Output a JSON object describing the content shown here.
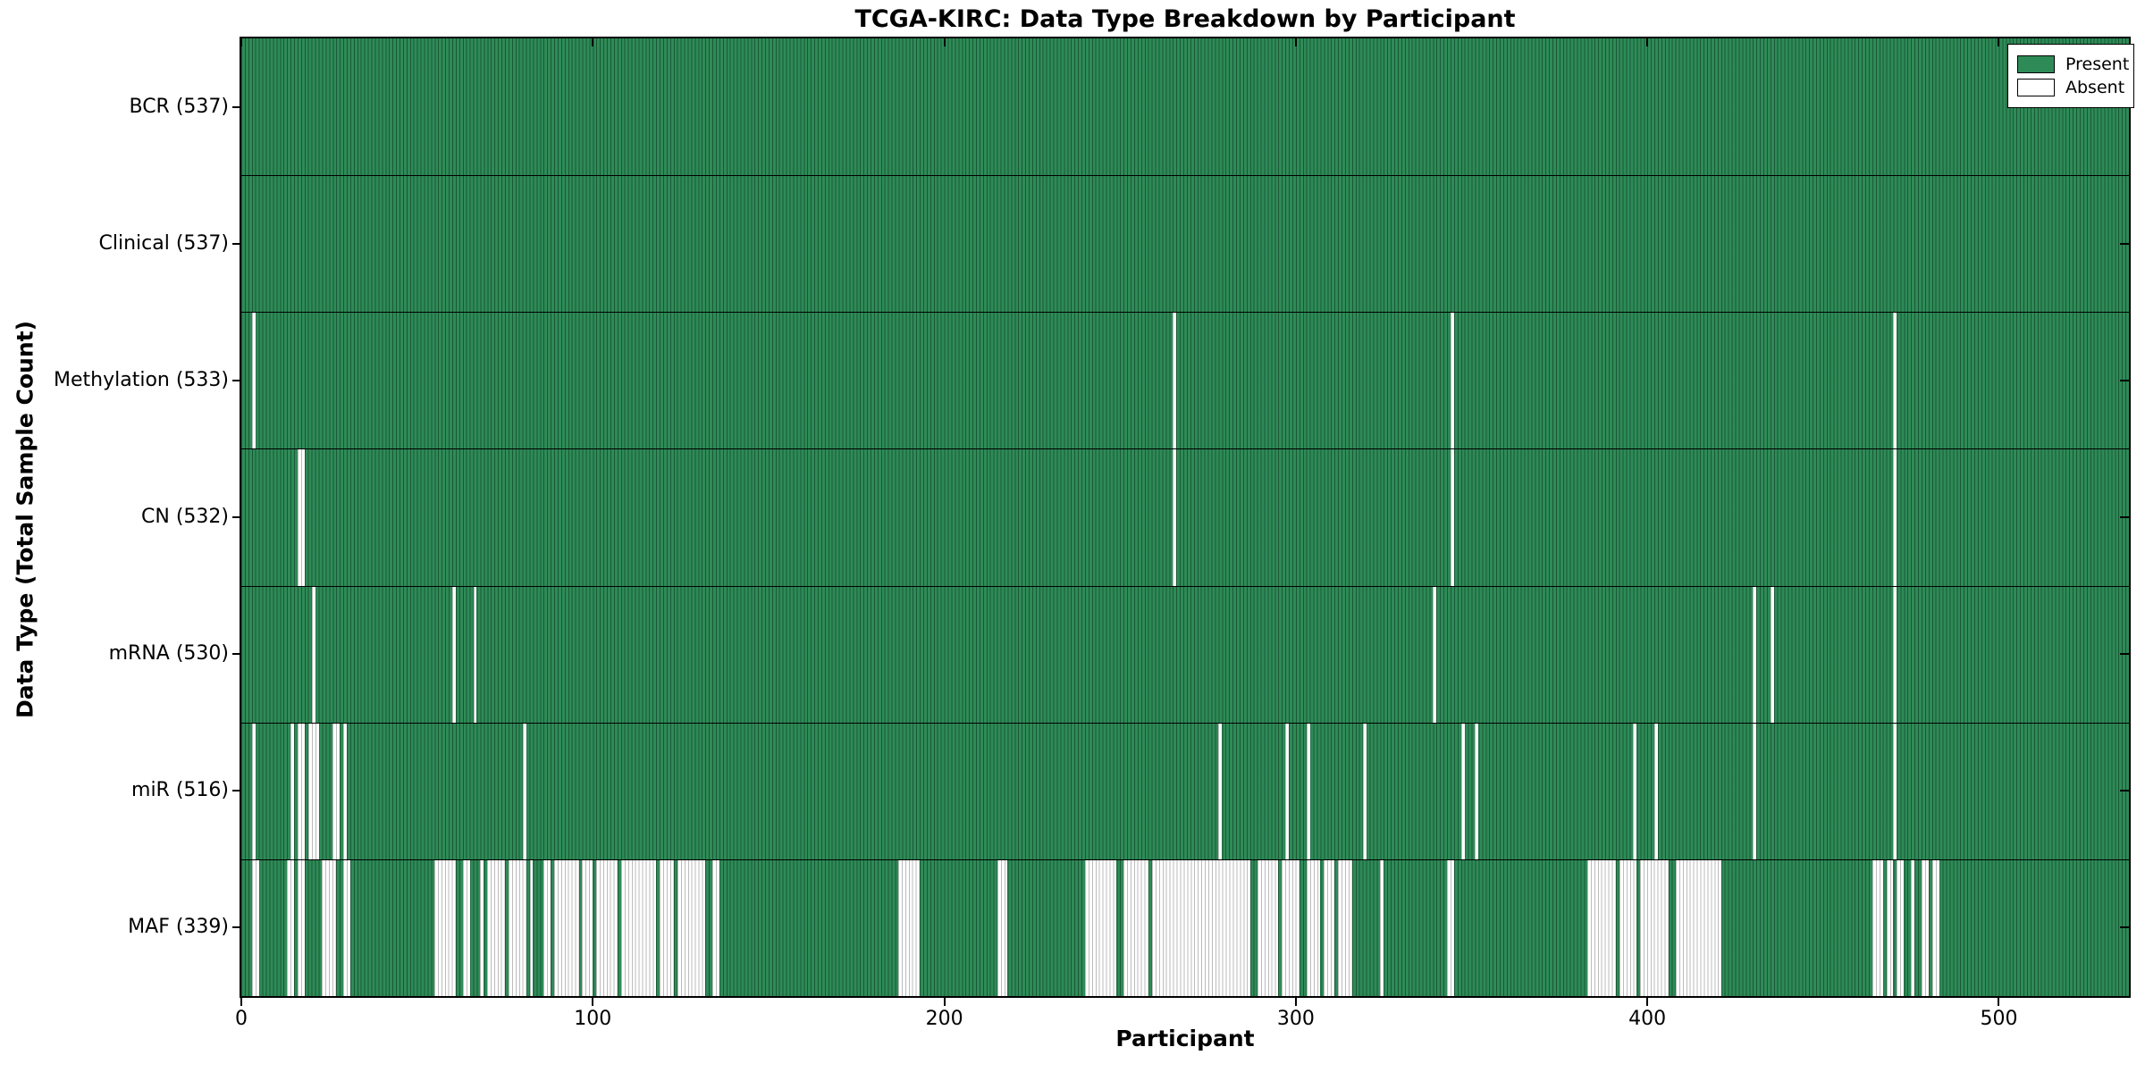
{
  "chart_data": {
    "type": "heatmap",
    "title": "TCGA-KIRC: Data Type Breakdown by Participant",
    "xlabel": "Participant",
    "ylabel": "Data Type (Total Sample Count)",
    "n_participants": 537,
    "x_ticks": [
      0,
      100,
      200,
      300,
      400,
      500
    ],
    "grid": false,
    "legend_position": "upper right",
    "colors": {
      "present": "#2e8b57",
      "absent": "#ffffff",
      "bar_edge": "#123d24",
      "frame": "#000000"
    },
    "legend": [
      {
        "label": "Present",
        "color": "#2e8b57"
      },
      {
        "label": "Absent",
        "color": "#ffffff"
      }
    ],
    "rows": [
      {
        "name": "BCR",
        "label": "BCR (537)",
        "present_count": 537,
        "absent_ranges": []
      },
      {
        "name": "Clinical",
        "label": "Clinical (537)",
        "present_count": 537,
        "absent_ranges": []
      },
      {
        "name": "Methylation",
        "label": "Methylation (533)",
        "present_count": 533,
        "absent_ranges": [
          [
            3,
            3
          ],
          [
            265,
            265
          ],
          [
            344,
            344
          ],
          [
            470,
            470
          ]
        ]
      },
      {
        "name": "CN",
        "label": "CN (532)",
        "present_count": 532,
        "absent_ranges": [
          [
            16,
            17
          ],
          [
            265,
            265
          ],
          [
            344,
            344
          ],
          [
            470,
            470
          ]
        ]
      },
      {
        "name": "mRNA",
        "label": "mRNA (530)",
        "present_count": 530,
        "absent_ranges": [
          [
            20,
            20
          ],
          [
            60,
            60
          ],
          [
            66,
            66
          ],
          [
            339,
            339
          ],
          [
            430,
            430
          ],
          [
            435,
            435
          ],
          [
            470,
            470
          ]
        ]
      },
      {
        "name": "miR",
        "label": "miR (516)",
        "present_count": 516,
        "absent_ranges": [
          [
            3,
            3
          ],
          [
            14,
            14
          ],
          [
            16,
            17
          ],
          [
            19,
            21
          ],
          [
            26,
            27
          ],
          [
            29,
            29
          ],
          [
            80,
            80
          ],
          [
            278,
            278
          ],
          [
            297,
            297
          ],
          [
            303,
            303
          ],
          [
            319,
            319
          ],
          [
            347,
            347
          ],
          [
            351,
            351
          ],
          [
            396,
            396
          ],
          [
            402,
            402
          ],
          [
            430,
            430
          ],
          [
            470,
            470
          ]
        ]
      },
      {
        "name": "MAF",
        "label": "MAF (339)",
        "present_count": 339,
        "absent_ranges": [
          [
            3,
            4
          ],
          [
            13,
            14
          ],
          [
            16,
            17
          ],
          [
            23,
            26
          ],
          [
            29,
            30
          ],
          [
            55,
            60
          ],
          [
            63,
            64
          ],
          [
            68,
            68
          ],
          [
            70,
            74
          ],
          [
            76,
            80
          ],
          [
            82,
            82
          ],
          [
            86,
            87
          ],
          [
            89,
            95
          ],
          [
            97,
            99
          ],
          [
            101,
            106
          ],
          [
            108,
            117
          ],
          [
            119,
            122
          ],
          [
            124,
            131
          ],
          [
            134,
            135
          ],
          [
            187,
            192
          ],
          [
            215,
            217
          ],
          [
            240,
            248
          ],
          [
            251,
            257
          ],
          [
            259,
            286
          ],
          [
            289,
            294
          ],
          [
            296,
            300
          ],
          [
            303,
            306
          ],
          [
            308,
            310
          ],
          [
            312,
            315
          ],
          [
            324,
            324
          ],
          [
            343,
            344
          ],
          [
            383,
            390
          ],
          [
            392,
            396
          ],
          [
            398,
            405
          ],
          [
            408,
            420
          ],
          [
            464,
            466
          ],
          [
            468,
            469
          ],
          [
            471,
            472
          ],
          [
            475,
            475
          ],
          [
            478,
            479
          ],
          [
            481,
            482
          ]
        ]
      }
    ]
  }
}
